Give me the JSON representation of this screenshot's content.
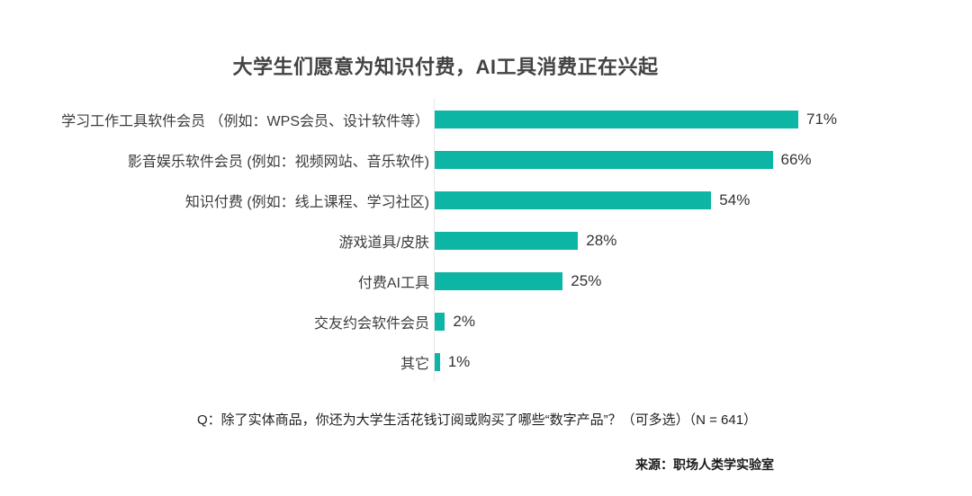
{
  "title": "大学生们愿意为知识付费，AI工具消费正在兴起",
  "chart_data": {
    "type": "bar",
    "orientation": "horizontal",
    "title": "大学生们愿意为知识付费，AI工具消费正在兴起",
    "categories": [
      "学习工作工具软件会员 （例如：WPS会员、设计软件等）",
      "影音娱乐软件会员 (例如：视频网站、音乐软件)",
      "知识付费 (例如：线上课程、学习社区)",
      "游戏道具/皮肤",
      "付费AI工具",
      "交友约会软件会员",
      "其它"
    ],
    "values": [
      71,
      66,
      54,
      28,
      25,
      2,
      1
    ],
    "value_labels": [
      "71%",
      "66%",
      "54%",
      "28%",
      "25%",
      "2%",
      "1%"
    ],
    "unit": "%",
    "xlim": [
      0,
      100
    ],
    "bar_color": "#0db5a5",
    "axis_line_color": "#e7e7e7",
    "grid": false,
    "legend": false
  },
  "footer": {
    "question": "Q：除了实体商品，你还为大学生活花钱订阅或购买了哪些“数字产品”？（可多选）（N = 641）",
    "source": "来源：职场人类学实验室"
  }
}
